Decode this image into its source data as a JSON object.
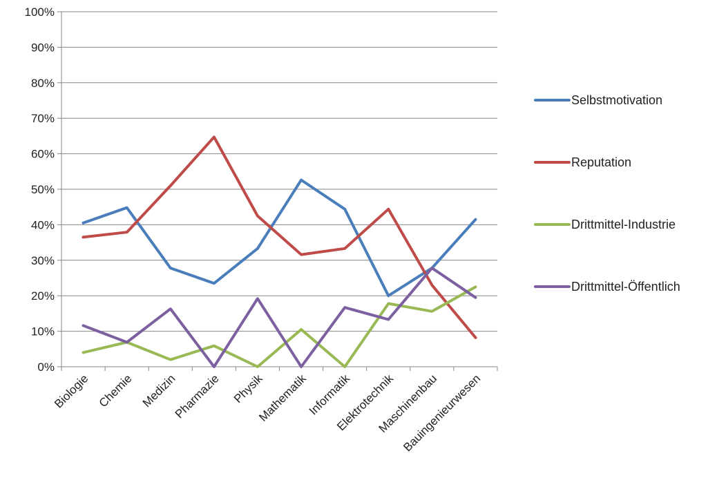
{
  "chart_data": {
    "type": "line",
    "title": "",
    "xlabel": "",
    "ylabel": "",
    "categories": [
      "Biologie",
      "Chemie",
      "Medizin",
      "Pharmazie",
      "Physik",
      "Mathematik",
      "Informatik",
      "Elektrotechnik",
      "Maschinenbau",
      "Bauingenieurwesen"
    ],
    "y_ticks": [
      "0%",
      "10%",
      "20%",
      "30%",
      "40%",
      "50%",
      "60%",
      "70%",
      "80%",
      "90%",
      "100%"
    ],
    "ylim": [
      0,
      100
    ],
    "grid": true,
    "legend_position": "right",
    "series": [
      {
        "name": "Selbstmotivation",
        "color": "#4a7ebb",
        "values": [
          40.5,
          44.8,
          27.8,
          23.5,
          33.3,
          52.6,
          44.4,
          20.0,
          27.8,
          41.5
        ]
      },
      {
        "name": "Reputation",
        "color": "#be4b48",
        "values": [
          36.5,
          37.9,
          51.0,
          64.7,
          42.5,
          31.6,
          33.3,
          44.4,
          23.0,
          8.2
        ]
      },
      {
        "name": "Drittmittel-Industrie",
        "color": "#98b954",
        "values": [
          4.0,
          6.9,
          2.0,
          5.9,
          0.0,
          10.5,
          0.0,
          17.8,
          15.6,
          22.5
        ]
      },
      {
        "name": "Drittmittel-Öffentlich",
        "color": "#7d60a0",
        "values": [
          11.6,
          6.9,
          16.3,
          0.0,
          19.2,
          0.0,
          16.7,
          13.3,
          27.8,
          19.5
        ]
      }
    ]
  }
}
